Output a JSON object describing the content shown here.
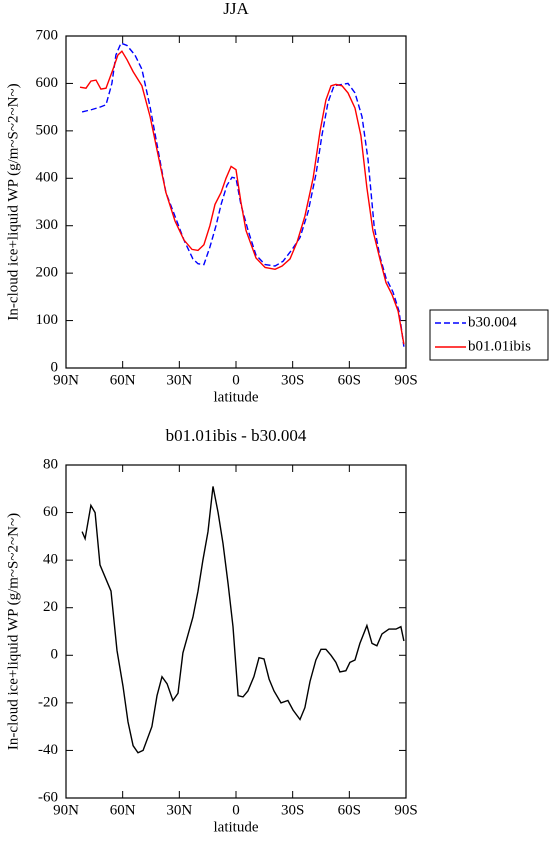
{
  "chart_data": [
    {
      "type": "line",
      "title": "JJA",
      "xlabel": "latitude",
      "ylabel": "In-cloud ice+liquid WP (g/m~S~2~N~)",
      "xlim": [
        90,
        -90
      ],
      "xticks": [
        {
          "value": 90,
          "label": "90N"
        },
        {
          "value": 60,
          "label": "60N"
        },
        {
          "value": 30,
          "label": "30N"
        },
        0,
        {
          "value": -30,
          "label": "30S"
        },
        {
          "value": -60,
          "label": "60S"
        },
        {
          "value": -90,
          "label": "90S"
        }
      ],
      "ylim": [
        0,
        700
      ],
      "yticks": [
        0,
        100,
        200,
        300,
        400,
        500,
        600,
        700
      ],
      "legend": "right",
      "series": [
        {
          "name": "b30.004",
          "color": "#0000ff",
          "line_style": "dashed",
          "x": [
            81.5,
            76.2,
            72,
            68.8,
            65.7,
            63.6,
            60.9,
            57.7,
            53.5,
            49.8,
            45.5,
            41.3,
            37.1,
            32.3,
            27.6,
            22.8,
            20.1,
            17,
            13.8,
            10.6,
            7.9,
            4.8,
            2.1,
            0,
            -2.6,
            -6.4,
            -10.6,
            -15.4,
            -20.7,
            -24.9,
            -29.7,
            -33.9,
            -38.2,
            -42.4,
            -45.5,
            -48.7,
            -51.9,
            -56.1,
            -59.3,
            -63,
            -66.7,
            -69.9,
            -73.1,
            -76.2,
            -79.4,
            -83.1,
            -86.3,
            -88.9
          ],
          "values": [
            540,
            545,
            550,
            555,
            600,
            660,
            685,
            680,
            660,
            630,
            550,
            460,
            370,
            320,
            270,
            230,
            220,
            218,
            255,
            300,
            345,
            385,
            402,
            400,
            345,
            290,
            238,
            218,
            215,
            225,
            250,
            275,
            330,
            410,
            490,
            560,
            595,
            598,
            600,
            580,
            530,
            440,
            300,
            235,
            190,
            160,
            120,
            45
          ]
        },
        {
          "name": "b01.01ibis",
          "color": "#ff0000",
          "line_style": "solid",
          "x": [
            82.6,
            79.4,
            76.8,
            74.1,
            71.5,
            68.8,
            65.1,
            62.5,
            60.4,
            57.7,
            54.5,
            49.8,
            45.5,
            41.3,
            37.1,
            32.3,
            27.6,
            23.3,
            20.1,
            17,
            13.8,
            11.1,
            7.9,
            5.3,
            2.6,
            0,
            -2.6,
            -5.3,
            -10.6,
            -15.4,
            -20.7,
            -24.4,
            -28.6,
            -32.3,
            -36.5,
            -40.8,
            -44.5,
            -47.6,
            -50.3,
            -52.9,
            -56.1,
            -59.3,
            -63,
            -66.1,
            -69.3,
            -72.5,
            -76.2,
            -79.4,
            -82.6,
            -85.8,
            -88.9
          ],
          "values": [
            592,
            590,
            605,
            607,
            588,
            590,
            630,
            660,
            668,
            650,
            625,
            595,
            530,
            450,
            370,
            310,
            270,
            250,
            248,
            260,
            300,
            345,
            370,
            400,
            425,
            418,
            350,
            290,
            232,
            212,
            208,
            215,
            230,
            265,
            320,
            400,
            500,
            565,
            595,
            598,
            595,
            580,
            548,
            490,
            380,
            290,
            230,
            180,
            155,
            120,
            50
          ]
        }
      ]
    },
    {
      "type": "line",
      "title": "b01.01ibis - b30.004",
      "xlabel": "latitude",
      "ylabel": "In-cloud ice+liquid WP (g/m~S~2~N~)",
      "xlim": [
        90,
        -90
      ],
      "xticks": [
        {
          "value": 90,
          "label": "90N"
        },
        {
          "value": 60,
          "label": "60N"
        },
        {
          "value": 30,
          "label": "30N"
        },
        0,
        {
          "value": -30,
          "label": "30S"
        },
        {
          "value": -60,
          "label": "60S"
        },
        {
          "value": -90,
          "label": "90S"
        }
      ],
      "ylim": [
        -60,
        80
      ],
      "yticks": [
        -60,
        -40,
        -20,
        0,
        20,
        40,
        60,
        80
      ],
      "color": "#000000",
      "x": [
        81.5,
        79.9,
        76.8,
        74.6,
        72,
        66.2,
        63,
        59.8,
        57.2,
        54.5,
        51.9,
        49.2,
        44.5,
        41.8,
        39.2,
        36.5,
        33.4,
        30.7,
        28.1,
        22.8,
        20.1,
        17.5,
        14.8,
        12.2,
        9.5,
        6.9,
        4.2,
        1.6,
        -1.1,
        -3.7,
        -6.3,
        -9.5,
        -12.2,
        -14.8,
        -17.5,
        -20.1,
        -23.8,
        -27.5,
        -30.2,
        -33.9,
        -36.5,
        -39.2,
        -42.3,
        -45,
        -47.6,
        -50.3,
        -52.9,
        -55,
        -58.2,
        -60.3,
        -63,
        -65.6,
        -69.3,
        -72,
        -74.6,
        -77.3,
        -81,
        -84.7,
        -87.3,
        -88.9
      ],
      "values": [
        52,
        49,
        63,
        60,
        38,
        27,
        2,
        -13,
        -28,
        -38,
        -41,
        -40,
        -30,
        -17,
        -9,
        -12,
        -19,
        -16,
        1,
        16,
        27,
        40,
        52,
        71,
        60,
        47,
        30,
        12,
        -17,
        -17.5,
        -15,
        -9,
        -1,
        -1.5,
        -10,
        -15,
        -20,
        -19,
        -23,
        -27,
        -22,
        -11,
        -2,
        2.5,
        2.5,
        0,
        -3,
        -7,
        -6.5,
        -3,
        -2,
        5,
        12.5,
        5,
        4,
        9,
        11,
        11,
        12,
        6
      ]
    }
  ]
}
